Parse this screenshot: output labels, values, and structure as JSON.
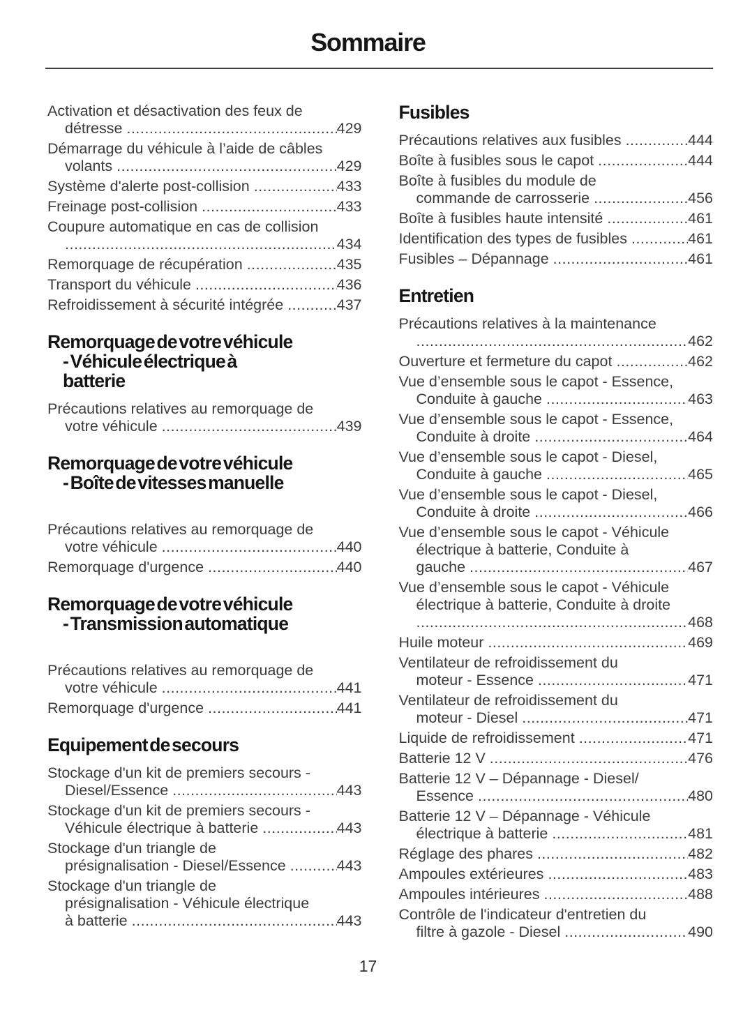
{
  "page": {
    "title": "Sommaire",
    "number": "17"
  },
  "left_column": [
    {
      "type": "entry",
      "lines": [
        "Activation et désactivation des feux de",
        "détresse"
      ],
      "page": "429"
    },
    {
      "type": "entry",
      "lines": [
        "Démarrage du véhicule à l’aide de câbles",
        "volants"
      ],
      "page": "429"
    },
    {
      "type": "entry",
      "lines": [
        "Système d'alerte post-collision"
      ],
      "page": "433"
    },
    {
      "type": "entry",
      "lines": [
        "Freinage post-collision"
      ],
      "page": "433"
    },
    {
      "type": "entry",
      "lines": [
        "Coupure automatique en cas de collision",
        ""
      ],
      "page": "434"
    },
    {
      "type": "entry",
      "lines": [
        "Remorquage de récupération"
      ],
      "page": "435"
    },
    {
      "type": "entry",
      "lines": [
        "Transport du véhicule"
      ],
      "page": "436"
    },
    {
      "type": "entry",
      "lines": [
        "Refroidissement à sécurité intégrée"
      ],
      "page": "437"
    },
    {
      "type": "heading",
      "lines": [
        "Remorquage de votre véhicule",
        "- Véhicule électrique à",
        "batterie"
      ]
    },
    {
      "type": "entry",
      "lines": [
        "Précautions relatives au remorquage de",
        "votre véhicule"
      ],
      "page": "439"
    },
    {
      "type": "heading",
      "lines": [
        "Remorquage de votre véhicule",
        "- Boîte de vitesses manuelle"
      ],
      "gap_after": true
    },
    {
      "type": "entry",
      "lines": [
        "Précautions relatives au remorquage de",
        "votre véhicule"
      ],
      "page": "440"
    },
    {
      "type": "entry",
      "lines": [
        "Remorquage d'urgence"
      ],
      "page": "440"
    },
    {
      "type": "heading",
      "lines": [
        "Remorquage de votre véhicule",
        "- Transmission automatique"
      ],
      "gap_after": true
    },
    {
      "type": "entry",
      "lines": [
        "Précautions relatives au remorquage de",
        "votre véhicule"
      ],
      "page": "441"
    },
    {
      "type": "entry",
      "lines": [
        "Remorquage d'urgence"
      ],
      "page": "441"
    },
    {
      "type": "heading",
      "lines": [
        "Equipement de secours"
      ]
    },
    {
      "type": "entry",
      "lines": [
        "Stockage d'un kit de premiers secours -",
        "Diesel/Essence"
      ],
      "page": "443"
    },
    {
      "type": "entry",
      "lines": [
        "Stockage d'un kit de premiers secours -",
        "Véhicule électrique à batterie"
      ],
      "page": "443"
    },
    {
      "type": "entry",
      "lines": [
        "Stockage d'un triangle de",
        "présignalisation - Diesel/Essence"
      ],
      "page": "443"
    },
    {
      "type": "entry",
      "lines": [
        "Stockage d'un triangle de",
        "présignalisation - Véhicule électrique",
        "à batterie"
      ],
      "page": "443"
    }
  ],
  "right_column": [
    {
      "type": "heading",
      "lines": [
        "Fusibles"
      ]
    },
    {
      "type": "entry",
      "lines": [
        "Précautions relatives aux fusibles"
      ],
      "page": "444"
    },
    {
      "type": "entry",
      "lines": [
        "Boîte à fusibles sous le capot"
      ],
      "page": "444"
    },
    {
      "type": "entry",
      "lines": [
        "Boîte à fusibles du module de",
        "commande de carrosserie"
      ],
      "page": "456"
    },
    {
      "type": "entry",
      "lines": [
        "Boîte à fusibles haute intensité"
      ],
      "page": "461"
    },
    {
      "type": "entry",
      "lines": [
        "Identification des types de fusibles"
      ],
      "page": "461"
    },
    {
      "type": "entry",
      "lines": [
        "Fusibles – Dépannage"
      ],
      "page": "461"
    },
    {
      "type": "heading",
      "lines": [
        "Entretien"
      ]
    },
    {
      "type": "entry",
      "lines": [
        "Précautions relatives à la maintenance",
        ""
      ],
      "page": "462"
    },
    {
      "type": "entry",
      "lines": [
        "Ouverture et fermeture du capot"
      ],
      "page": "462"
    },
    {
      "type": "entry",
      "lines": [
        "Vue d’ensemble sous le capot - Essence,",
        "Conduite à gauche"
      ],
      "page": "463"
    },
    {
      "type": "entry",
      "lines": [
        "Vue d’ensemble sous le capot - Essence,",
        "Conduite à droite"
      ],
      "page": "464"
    },
    {
      "type": "entry",
      "lines": [
        "Vue d’ensemble sous le capot - Diesel,",
        "Conduite à gauche"
      ],
      "page": "465"
    },
    {
      "type": "entry",
      "lines": [
        "Vue d’ensemble sous le capot - Diesel,",
        "Conduite à droite"
      ],
      "page": "466"
    },
    {
      "type": "entry",
      "lines": [
        "Vue d’ensemble sous le capot - Véhicule",
        "électrique à batterie, Conduite à",
        "gauche"
      ],
      "page": "467"
    },
    {
      "type": "entry",
      "lines": [
        "Vue d’ensemble sous le capot - Véhicule",
        "électrique à batterie, Conduite à droite",
        ""
      ],
      "page": "468"
    },
    {
      "type": "entry",
      "lines": [
        "Huile moteur"
      ],
      "page": "469"
    },
    {
      "type": "entry",
      "lines": [
        "Ventilateur de refroidissement du",
        "moteur - Essence"
      ],
      "page": "471"
    },
    {
      "type": "entry",
      "lines": [
        "Ventilateur de refroidissement du",
        "moteur - Diesel"
      ],
      "page": "471"
    },
    {
      "type": "entry",
      "lines": [
        "Liquide de refroidissement"
      ],
      "page": "471"
    },
    {
      "type": "entry",
      "lines": [
        "Batterie 12 V"
      ],
      "page": "476"
    },
    {
      "type": "entry",
      "lines": [
        "Batterie 12 V – Dépannage - Diesel/",
        "Essence"
      ],
      "page": "480"
    },
    {
      "type": "entry",
      "lines": [
        "Batterie 12 V – Dépannage - Véhicule",
        "électrique à batterie"
      ],
      "page": "481"
    },
    {
      "type": "entry",
      "lines": [
        "Réglage des phares"
      ],
      "page": "482"
    },
    {
      "type": "entry",
      "lines": [
        "Ampoules extérieures"
      ],
      "page": "483"
    },
    {
      "type": "entry",
      "lines": [
        "Ampoules intérieures"
      ],
      "page": "488"
    },
    {
      "type": "entry",
      "lines": [
        "Contrôle de l'indicateur d'entretien du",
        "filtre à gazole - Diesel"
      ],
      "page": "490"
    }
  ]
}
